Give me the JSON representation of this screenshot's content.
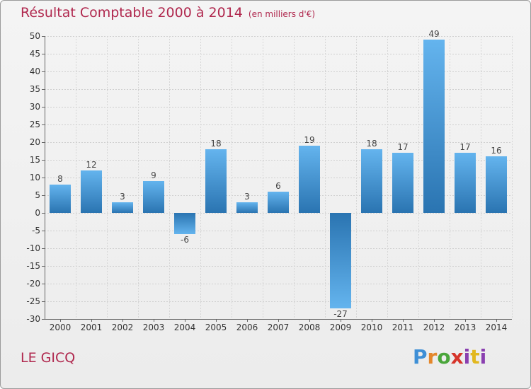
{
  "chart_data": {
    "type": "bar",
    "title": "Résultat Comptable 2000 à 2014",
    "subtitle": "(en milliers d'€)",
    "categories": [
      "2000",
      "2001",
      "2002",
      "2003",
      "2004",
      "2005",
      "2006",
      "2007",
      "2008",
      "2009",
      "2010",
      "2011",
      "2012",
      "2013",
      "2014"
    ],
    "values": [
      8,
      12,
      3,
      9,
      -6,
      18,
      3,
      6,
      19,
      -27,
      18,
      17,
      49,
      17,
      16
    ],
    "ylim": [
      -30,
      50
    ],
    "yticks": [
      50,
      45,
      40,
      35,
      30,
      25,
      20,
      15,
      10,
      5,
      0,
      -5,
      -10,
      -15,
      -20,
      -25,
      -30
    ],
    "grid": true,
    "xlabel": "",
    "ylabel": ""
  },
  "footer": {
    "commune": "LE GICQ",
    "brand": "Proxiti"
  },
  "colors": {
    "bar_light": "#62b2ec",
    "bar_dark": "#2a74b1",
    "title": "#b0284e"
  }
}
